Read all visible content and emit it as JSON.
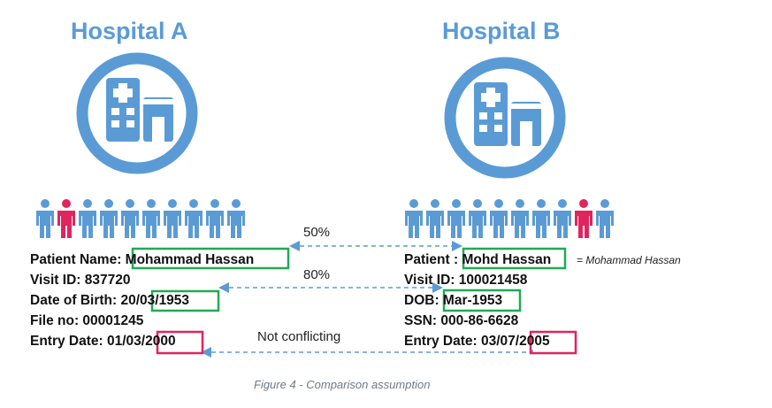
{
  "hospital_a": {
    "title": "Hospital A",
    "patient_name_label": "Patient Name: ",
    "patient_name_value": "Mohammad Hassan",
    "visit_id": "Visit ID: 837720",
    "dob_prefix": "Date of Birth: 20/",
    "dob_boxed": "03/1953",
    "file_no": "File no: 00001245",
    "entry_prefix": "Entry Date: 01/03/",
    "entry_boxed": "2000",
    "people_count": 10,
    "highlight_index": 1
  },
  "hospital_b": {
    "title": "Hospital B",
    "patient_label": "Patient : ",
    "patient_value": "Mohd Hassan",
    "visit_id": "Visit ID: 100021458",
    "dob_label": "DOB: ",
    "dob_boxed": "Mar-1953",
    "ssn": "SSN: 000-86-6628",
    "entry_prefix": "Entry Date: 03/07/",
    "entry_boxed": "2005",
    "people_count": 10,
    "highlight_index": 8
  },
  "equivalence_note": "= Mohammad Hassan",
  "comparisons": {
    "name_similarity": "50%",
    "dob_similarity": "80%",
    "entry_date": "Not conflicting"
  },
  "caption": "Figure 4 - Comparison assumption",
  "colors": {
    "hospital_blue": "#5b9bd5",
    "match_green": "#1faa55",
    "conflict_red": "#e0245e",
    "highlight_red": "#e0245e",
    "arrow_blue": "#5b9bd5"
  },
  "icons": {
    "hospital": "hospital-building-icon",
    "person": "person-icon"
  }
}
